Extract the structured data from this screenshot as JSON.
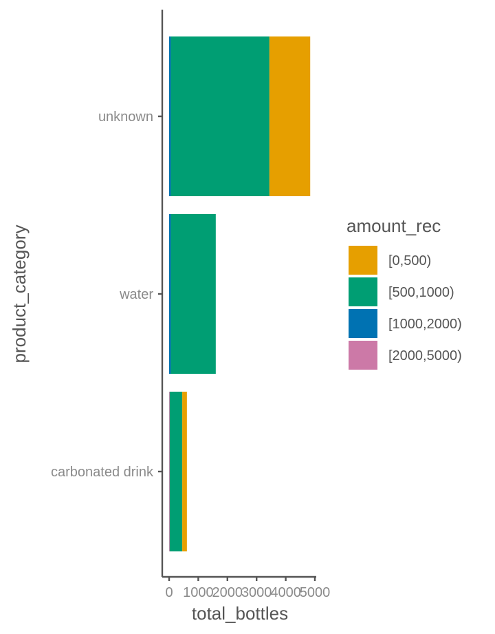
{
  "chart_data": {
    "type": "bar",
    "orientation": "horizontal",
    "stacked": true,
    "categories": [
      "unknown",
      "water",
      "carbonated drink"
    ],
    "xlabel": "total_bottles",
    "ylabel": "product_category",
    "xlim": [
      0,
      5000
    ],
    "x_ticks": [
      "0",
      "1000",
      "2000",
      "3000",
      "4000",
      "5000"
    ],
    "legend_title": "amount_rec",
    "legend_position": "right",
    "series": [
      {
        "name": "[2000,5000)",
        "color": "#CC79A7",
        "values": [
          0,
          0,
          20
        ]
      },
      {
        "name": "[1000,2000)",
        "color": "#0072B2",
        "values": [
          60,
          60,
          0
        ]
      },
      {
        "name": "[500,1000)",
        "color": "#009E73",
        "values": [
          3380,
          1540,
          430
        ]
      },
      {
        "name": "[0,500)",
        "color": "#E69F00",
        "values": [
          1400,
          0,
          160
        ]
      }
    ],
    "legend_order": [
      "[0,500)",
      "[500,1000)",
      "[1000,2000)",
      "[2000,5000)"
    ],
    "grid": false
  }
}
